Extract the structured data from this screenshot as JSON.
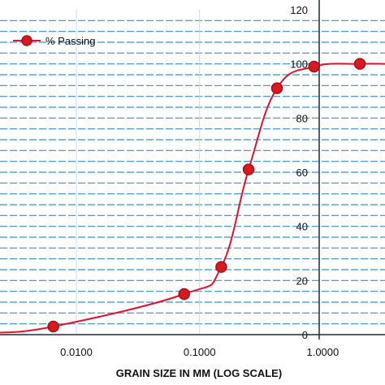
{
  "chart_data": {
    "type": "line",
    "title": "",
    "xlabel": "GRAIN SIZE IN MM (LOG SCALE)",
    "ylabel": "",
    "x_scale": "log",
    "x_range": [
      0.002,
      3.2
    ],
    "y_range": [
      0,
      120
    ],
    "y_axis_position": "right",
    "x_ticks": [
      {
        "value": 0.01,
        "label": "0.0100"
      },
      {
        "value": 0.1,
        "label": "0.1000"
      },
      {
        "value": 1,
        "label": "1.0000"
      }
    ],
    "y_ticks": [
      0,
      20,
      40,
      60,
      80,
      100,
      120
    ],
    "grid": "dashed horizontal lines; faint vertical lines at decades",
    "legend_position": "top-left",
    "series": [
      {
        "name": "% Passing",
        "color": "#e8112d",
        "marker_color": "#d71920",
        "x": [
          0.0065,
          0.075,
          0.15,
          0.25,
          0.425,
          0.85,
          2.0
        ],
        "y": [
          3,
          15,
          25,
          61,
          91,
          99,
          100
        ]
      }
    ]
  }
}
